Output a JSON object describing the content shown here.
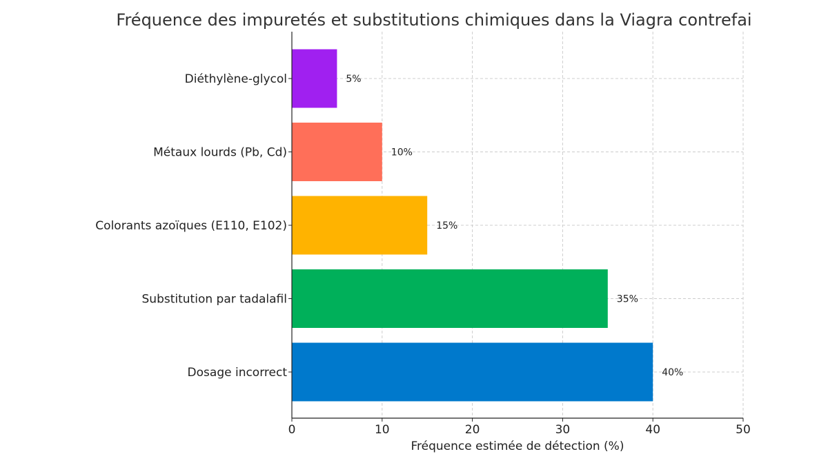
{
  "chart_data": {
    "type": "bar",
    "orientation": "horizontal",
    "title": "Fréquence des impuretés et substitutions chimiques dans la Viagra contrefai",
    "xlabel": "Fréquence estimée de détection (%)",
    "ylabel": "",
    "xlim": [
      0,
      50
    ],
    "xticks": [
      0,
      10,
      20,
      30,
      40,
      50
    ],
    "grid": true,
    "categories": [
      "Dosage incorrect",
      "Substitution par tadalafil",
      "Colorants azoïques (E110, E102)",
      "Métaux lourds (Pb, Cd)",
      "Diéthylène-glycol"
    ],
    "values": [
      40,
      35,
      15,
      10,
      5
    ],
    "data_labels": [
      "40%",
      "35%",
      "15%",
      "10%",
      "5%"
    ],
    "colors": [
      "#0079cc",
      "#00b05a",
      "#ffb300",
      "#ff6f59",
      "#a020f0"
    ]
  }
}
